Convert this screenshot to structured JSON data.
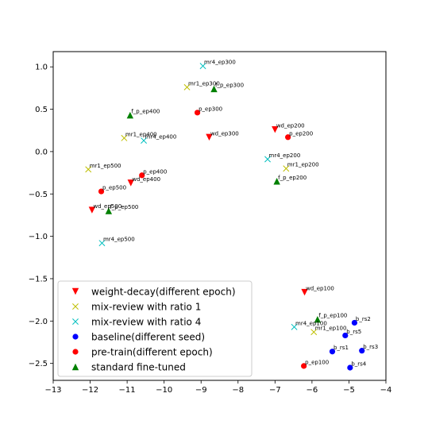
{
  "chart_data": {
    "type": "scatter",
    "xlim": [
      -13,
      -4
    ],
    "ylim": [
      -2.7,
      1.18
    ],
    "x_ticks": [
      -13,
      -12,
      -11,
      -10,
      -9,
      -8,
      -7,
      -6,
      -5,
      -4
    ],
    "y_ticks": [
      1.0,
      0.5,
      0.0,
      -0.5,
      -1.0,
      -1.5,
      -2.0,
      -2.5
    ],
    "x_tick_labels": [
      "−13",
      "−12",
      "−11",
      "−10",
      "−9",
      "−8",
      "−7",
      "−6",
      "−5",
      "−4"
    ],
    "y_tick_labels": [
      "1.0",
      "0.5",
      "0.0",
      "−0.5",
      "−1.0",
      "−1.5",
      "−2.0",
      "−2.5"
    ],
    "grid": false,
    "legend_position": "lower-left",
    "series": [
      {
        "name": "weight-decay(different epoch)",
        "marker": "triangle-down",
        "color": "#ff0000",
        "points": [
          {
            "label": "wd_ep100",
            "x": -6.2,
            "y": -1.66
          },
          {
            "label": "wd_ep200",
            "x": -7.0,
            "y": 0.26
          },
          {
            "label": "wd_ep300",
            "x": -8.78,
            "y": 0.17
          },
          {
            "label": "wd_ep400",
            "x": -10.9,
            "y": -0.37
          },
          {
            "label": "wd_ep500",
            "x": -11.95,
            "y": -0.69
          }
        ]
      },
      {
        "name": "mix-review with ratio 1",
        "marker": "x",
        "color": "#bfbf00",
        "points": [
          {
            "label": "mr1_ep100",
            "x": -5.95,
            "y": -2.13
          },
          {
            "label": "mr1_ep200",
            "x": -6.7,
            "y": -0.2
          },
          {
            "label": "mr1_ep300",
            "x": -9.38,
            "y": 0.76
          },
          {
            "label": "mr1_ep400",
            "x": -11.08,
            "y": 0.16
          },
          {
            "label": "mr1_ep500",
            "x": -12.05,
            "y": -0.21
          }
        ]
      },
      {
        "name": "mix-review with ratio 4",
        "marker": "x",
        "color": "#00bfbf",
        "points": [
          {
            "label": "mr4_ep100",
            "x": -6.48,
            "y": -2.07
          },
          {
            "label": "mr4_ep200",
            "x": -7.2,
            "y": -0.09
          },
          {
            "label": "mr4_ep300",
            "x": -8.95,
            "y": 1.01
          },
          {
            "label": "mr4_ep400",
            "x": -10.55,
            "y": 0.13
          },
          {
            "label": "mr4_ep500",
            "x": -11.68,
            "y": -1.08
          }
        ]
      },
      {
        "name": "baseline(different seed)",
        "marker": "circle",
        "color": "#0000ff",
        "points": [
          {
            "label": "b_rs1",
            "x": -5.45,
            "y": -2.36
          },
          {
            "label": "b_rs2",
            "x": -4.85,
            "y": -2.02
          },
          {
            "label": "b_rs3",
            "x": -4.65,
            "y": -2.35
          },
          {
            "label": "b_rs4",
            "x": -4.97,
            "y": -2.55
          },
          {
            "label": "b_rs5",
            "x": -5.1,
            "y": -2.17
          }
        ]
      },
      {
        "name": "pre-train(different epoch)",
        "marker": "circle",
        "color": "#ff0000",
        "points": [
          {
            "label": "p_ep100",
            "x": -6.22,
            "y": -2.53
          },
          {
            "label": "p_ep200",
            "x": -6.65,
            "y": 0.17
          },
          {
            "label": "p_ep300",
            "x": -9.1,
            "y": 0.46
          },
          {
            "label": "p_ep400",
            "x": -10.6,
            "y": -0.28
          },
          {
            "label": "p_ep500",
            "x": -11.7,
            "y": -0.47
          }
        ]
      },
      {
        "name": "standard fine-tuned",
        "marker": "triangle-up",
        "color": "#008000",
        "points": [
          {
            "label": "f_p_ep100",
            "x": -5.85,
            "y": -1.98
          },
          {
            "label": "f_p_ep200",
            "x": -6.95,
            "y": -0.35
          },
          {
            "label": "f_p_ep300",
            "x": -8.65,
            "y": 0.74
          },
          {
            "label": "f_p_ep400",
            "x": -10.92,
            "y": 0.43
          },
          {
            "label": "f_p_ep500",
            "x": -11.5,
            "y": -0.7
          }
        ]
      }
    ]
  }
}
